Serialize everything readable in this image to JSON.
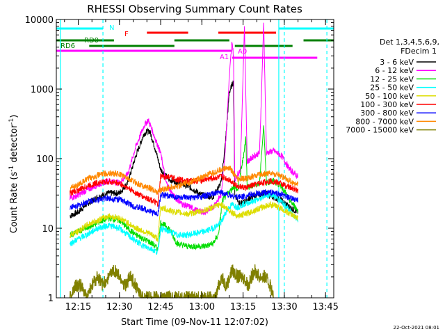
{
  "chart_data": {
    "type": "line",
    "title": "RHESSI Observing Summary Count Rates",
    "xlabel": "Start Time (09-Nov-11 12:07:02)",
    "ylabel_main": "Count Rate (s",
    "ylabel_sup1": "-1",
    "ylabel_mid": " detector",
    "ylabel_sup2": "-1",
    "ylabel_end": ")",
    "footer_date": "22-Oct-2021 08:01",
    "y_scale": "log",
    "ylim": [
      1,
      10000
    ],
    "xlim_minutes": [
      7.03,
      108
    ],
    "x_ticks": [
      {
        "m": 15,
        "label": "12:15"
      },
      {
        "m": 30,
        "label": "12:30"
      },
      {
        "m": 45,
        "label": "12:45"
      },
      {
        "m": 60,
        "label": "13:00"
      },
      {
        "m": 75,
        "label": "13:15"
      },
      {
        "m": 90,
        "label": "13:30"
      },
      {
        "m": 105,
        "label": "13:45"
      }
    ],
    "y_ticks": [
      {
        "v": 1,
        "label": "1"
      },
      {
        "v": 10,
        "label": "10"
      },
      {
        "v": 100,
        "label": "100"
      },
      {
        "v": 1000,
        "label": "1000"
      },
      {
        "v": 10000,
        "label": "10000"
      }
    ],
    "legend": {
      "header1": "Det 1,3,4,5,6,9,",
      "header2": "FDecim 1",
      "placement": "right"
    },
    "series": [
      {
        "name": "3 - 6 keV",
        "color": "#000000",
        "points": [
          [
            12,
            15
          ],
          [
            15,
            17
          ],
          [
            18,
            22
          ],
          [
            22,
            28
          ],
          [
            26,
            32
          ],
          [
            30,
            32
          ],
          [
            33,
            45
          ],
          [
            36,
            110
          ],
          [
            39,
            230
          ],
          [
            41,
            250
          ],
          [
            43,
            140
          ],
          [
            45,
            70
          ],
          [
            48,
            50
          ],
          [
            52,
            45
          ],
          [
            56,
            38
          ],
          [
            60,
            30
          ],
          [
            64,
            28
          ],
          [
            67,
            45
          ],
          [
            68.5,
            160
          ],
          [
            70,
            900
          ],
          [
            71.5,
            1300
          ],
          [
            72,
            30
          ],
          [
            74,
            22
          ],
          [
            76,
            25
          ],
          [
            78,
            28
          ],
          [
            80,
            30
          ],
          [
            83,
            32
          ],
          [
            86,
            28
          ],
          [
            89,
            25
          ],
          [
            92,
            20
          ],
          [
            95,
            17
          ]
        ]
      },
      {
        "name": "6 - 12 keV",
        "color": "#ff00ff",
        "points": [
          [
            12,
            27
          ],
          [
            15,
            30
          ],
          [
            18,
            35
          ],
          [
            22,
            42
          ],
          [
            26,
            48
          ],
          [
            30,
            45
          ],
          [
            33,
            60
          ],
          [
            36,
            150
          ],
          [
            39,
            300
          ],
          [
            40.5,
            360
          ],
          [
            42,
            250
          ],
          [
            45,
            120
          ],
          [
            47,
            45
          ],
          [
            50,
            28
          ],
          [
            53,
            22
          ],
          [
            56,
            20
          ],
          [
            58,
            18
          ],
          [
            61,
            17
          ],
          [
            64,
            20
          ],
          [
            67,
            30
          ],
          [
            68.5,
            130
          ],
          [
            70,
            1500
          ],
          [
            71,
            5000
          ],
          [
            71.5,
            3000
          ],
          [
            72,
            50
          ],
          [
            74,
            70
          ],
          [
            75.5,
            8000
          ],
          [
            76.5,
            90
          ],
          [
            79,
            110
          ],
          [
            81,
            120
          ],
          [
            82.5,
            9000
          ],
          [
            83.5,
            120
          ],
          [
            86,
            130
          ],
          [
            89,
            110
          ],
          [
            92,
            70
          ],
          [
            95,
            55
          ]
        ]
      },
      {
        "name": "12 - 25 keV",
        "color": "#00dd00",
        "points": [
          [
            12,
            8
          ],
          [
            15,
            9
          ],
          [
            18,
            10
          ],
          [
            22,
            12
          ],
          [
            26,
            14
          ],
          [
            30,
            13
          ],
          [
            33,
            10
          ],
          [
            36,
            8
          ],
          [
            39,
            7
          ],
          [
            42,
            6
          ],
          [
            44,
            5
          ],
          [
            45,
            12
          ],
          [
            48,
            10
          ],
          [
            51,
            6
          ],
          [
            55,
            5.5
          ],
          [
            58,
            5.5
          ],
          [
            61,
            5.5
          ],
          [
            64,
            6
          ],
          [
            66,
            8
          ],
          [
            67.5,
            25
          ],
          [
            69,
            30
          ],
          [
            70.5,
            35
          ],
          [
            71.5,
            40
          ],
          [
            73,
            35
          ],
          [
            75,
            100
          ],
          [
            76,
            200
          ],
          [
            76.5,
            40
          ],
          [
            78,
            40
          ],
          [
            81,
            45
          ],
          [
            82.5,
            300
          ],
          [
            83.5,
            45
          ],
          [
            86,
            48
          ],
          [
            89,
            40
          ],
          [
            92,
            25
          ],
          [
            95,
            18
          ]
        ]
      },
      {
        "name": "25 - 50 keV",
        "color": "#00ffff",
        "points": [
          [
            12,
            6
          ],
          [
            15,
            7
          ],
          [
            18,
            8
          ],
          [
            22,
            10
          ],
          [
            26,
            11
          ],
          [
            30,
            10
          ],
          [
            33,
            8
          ],
          [
            36,
            6.5
          ],
          [
            39,
            5.5
          ],
          [
            42,
            5
          ],
          [
            44,
            4.5
          ],
          [
            45,
            10
          ],
          [
            48,
            9
          ],
          [
            51,
            8
          ],
          [
            55,
            8
          ],
          [
            58,
            8.5
          ],
          [
            61,
            9
          ],
          [
            64,
            10
          ],
          [
            67,
            12
          ],
          [
            69,
            18
          ],
          [
            71,
            22
          ],
          [
            73,
            20
          ],
          [
            75,
            22
          ],
          [
            78,
            24
          ],
          [
            81,
            26
          ],
          [
            83,
            30
          ],
          [
            86,
            30
          ],
          [
            89,
            24
          ],
          [
            92,
            18
          ],
          [
            95,
            13
          ]
        ]
      },
      {
        "name": "50 - 100 keV",
        "color": "#dddd00",
        "points": [
          [
            12,
            8
          ],
          [
            15,
            9
          ],
          [
            18,
            11
          ],
          [
            22,
            13
          ],
          [
            26,
            15
          ],
          [
            30,
            14
          ],
          [
            33,
            12
          ],
          [
            36,
            10
          ],
          [
            39,
            9
          ],
          [
            42,
            8
          ],
          [
            44,
            7
          ],
          [
            45,
            20
          ],
          [
            48,
            18
          ],
          [
            51,
            17
          ],
          [
            55,
            16
          ],
          [
            58,
            17
          ],
          [
            61,
            18
          ],
          [
            64,
            20
          ],
          [
            67,
            22
          ],
          [
            70,
            18
          ],
          [
            73,
            15
          ],
          [
            76,
            16
          ],
          [
            79,
            18
          ],
          [
            82,
            20
          ],
          [
            85,
            22
          ],
          [
            88,
            20
          ],
          [
            91,
            17
          ],
          [
            95,
            14
          ]
        ]
      },
      {
        "name": "100 - 300 keV",
        "color": "#ff0000",
        "points": [
          [
            12,
            32
          ],
          [
            15,
            35
          ],
          [
            18,
            40
          ],
          [
            22,
            45
          ],
          [
            26,
            47
          ],
          [
            30,
            44
          ],
          [
            33,
            38
          ],
          [
            36,
            32
          ],
          [
            39,
            28
          ],
          [
            42,
            25
          ],
          [
            44,
            22
          ],
          [
            45,
            55
          ],
          [
            48,
            55
          ],
          [
            51,
            50
          ],
          [
            55,
            48
          ],
          [
            58,
            48
          ],
          [
            61,
            50
          ],
          [
            64,
            52
          ],
          [
            67,
            55
          ],
          [
            70,
            50
          ],
          [
            73,
            40
          ],
          [
            76,
            38
          ],
          [
            79,
            42
          ],
          [
            82,
            45
          ],
          [
            85,
            48
          ],
          [
            88,
            45
          ],
          [
            91,
            40
          ],
          [
            95,
            35
          ]
        ]
      },
      {
        "name": "300 - 800 keV",
        "color": "#0000ff",
        "points": [
          [
            12,
            20
          ],
          [
            15,
            21
          ],
          [
            18,
            24
          ],
          [
            22,
            26
          ],
          [
            26,
            27
          ],
          [
            30,
            26
          ],
          [
            33,
            23
          ],
          [
            36,
            20
          ],
          [
            39,
            19
          ],
          [
            42,
            17
          ],
          [
            44,
            16
          ],
          [
            45,
            30
          ],
          [
            48,
            29
          ],
          [
            51,
            28
          ],
          [
            55,
            27
          ],
          [
            58,
            28
          ],
          [
            61,
            29
          ],
          [
            64,
            31
          ],
          [
            67,
            33
          ],
          [
            70,
            30
          ],
          [
            73,
            28
          ],
          [
            76,
            29
          ],
          [
            79,
            31
          ],
          [
            82,
            32
          ],
          [
            85,
            33
          ],
          [
            88,
            31
          ],
          [
            91,
            28
          ],
          [
            95,
            25
          ]
        ]
      },
      {
        "name": "800 - 7000 keV",
        "color": "#ff8800",
        "points": [
          [
            12,
            38
          ],
          [
            15,
            42
          ],
          [
            18,
            50
          ],
          [
            22,
            58
          ],
          [
            26,
            62
          ],
          [
            30,
            60
          ],
          [
            33,
            52
          ],
          [
            36,
            45
          ],
          [
            39,
            40
          ],
          [
            42,
            36
          ],
          [
            44,
            33
          ],
          [
            45,
            36
          ],
          [
            48,
            38
          ],
          [
            51,
            40
          ],
          [
            55,
            45
          ],
          [
            58,
            50
          ],
          [
            61,
            56
          ],
          [
            64,
            62
          ],
          [
            67,
            70
          ],
          [
            70,
            75
          ],
          [
            73,
            50
          ],
          [
            76,
            52
          ],
          [
            79,
            56
          ],
          [
            82,
            60
          ],
          [
            85,
            62
          ],
          [
            88,
            58
          ],
          [
            91,
            50
          ],
          [
            95,
            42
          ]
        ]
      },
      {
        "name": "7000 - 15000 keV",
        "color": "#808000",
        "points": [
          [
            12,
            1
          ],
          [
            14,
            1.5
          ],
          [
            16,
            1.5
          ],
          [
            18,
            1
          ],
          [
            20,
            1.5
          ],
          [
            22,
            2
          ],
          [
            24,
            1.5
          ],
          [
            26,
            2
          ],
          [
            28,
            2.5
          ],
          [
            30,
            2
          ],
          [
            32,
            1.5
          ],
          [
            34,
            2
          ],
          [
            36,
            1.5
          ],
          [
            38,
            1
          ],
          [
            40,
            1
          ],
          [
            65,
            1
          ],
          [
            67,
            2
          ],
          [
            69,
            1.5
          ],
          [
            71,
            2.5
          ],
          [
            73,
            2
          ],
          [
            75,
            2
          ],
          [
            77,
            1.5
          ],
          [
            79,
            2.5
          ],
          [
            81,
            2
          ],
          [
            83,
            2
          ],
          [
            85,
            1.5
          ],
          [
            86,
            1
          ]
        ]
      }
    ],
    "flag_bars": [
      {
        "label": "F",
        "color": "#ff0000",
        "segments": [
          [
            40,
            55
          ],
          [
            66,
            87
          ]
        ]
      },
      {
        "label": "",
        "color": "#00ffff",
        "segments": [
          [
            7.03,
            24
          ],
          [
            88,
            108
          ]
        ]
      },
      {
        "label": "RD0",
        "color": "#008000",
        "segments": [
          [
            7.03,
            28
          ],
          [
            50,
            70
          ],
          [
            97,
            108
          ]
        ]
      },
      {
        "label": "RD6",
        "color": "#008000",
        "segments": [
          [
            19,
            50
          ],
          [
            72,
            93
          ]
        ]
      },
      {
        "label": "",
        "color": "#ff00ff",
        "segments": [
          [
            7.03,
            71
          ]
        ]
      },
      {
        "label": "",
        "color": "#ff00ff",
        "segments": [
          [
            71,
            102
          ]
        ]
      }
    ],
    "flag_labels": [
      {
        "text": "N",
        "color": "#00ffff"
      },
      {
        "text": "A1",
        "color": "#ff00ff"
      },
      {
        "text": "A0",
        "color": "#ff00ff"
      }
    ],
    "vlines": [
      {
        "m": 8.5,
        "color": "#00ffff",
        "style": "solid"
      },
      {
        "m": 24,
        "color": "#00ffff",
        "style": "dashed"
      },
      {
        "m": 88,
        "color": "#00ffff",
        "style": "solid"
      },
      {
        "m": 90,
        "color": "#00ffff",
        "style": "dashed"
      },
      {
        "m": 105.5,
        "color": "#00ffff",
        "style": "dashed"
      }
    ]
  }
}
